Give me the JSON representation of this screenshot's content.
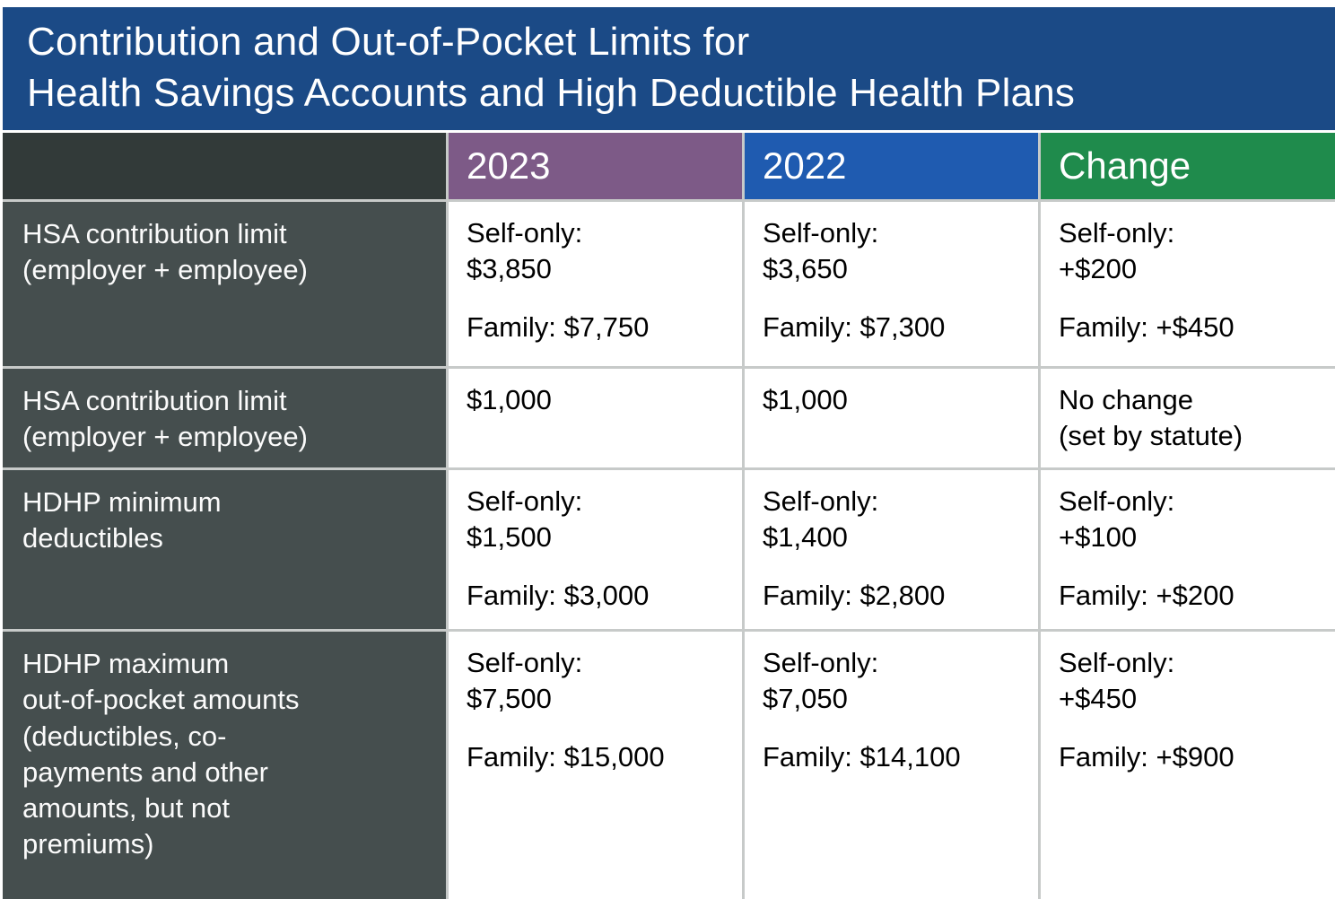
{
  "title": "Contribution and Out-of-Pocket Limits for\nHealth Savings Accounts and High Deductible Health Plans",
  "columns": {
    "y2023": "2023",
    "y2022": "2022",
    "change": "Change"
  },
  "colors": {
    "title_bar": "#1b4a86",
    "header_corner": "#323a39",
    "header_2023": "#7d5a87",
    "header_2022": "#1f5bb0",
    "header_change": "#1f8b4c",
    "row_label_bg": "#454e4e",
    "gridline": "#c7cac9",
    "body_text": "#000000",
    "label_text": "#fbfbfb"
  },
  "rows": [
    {
      "label": "HSA contribution limit\n(employer + employee)",
      "y2023": [
        "Self-only:\n$3,850",
        "Family: $7,750"
      ],
      "y2022": [
        "Self-only:\n$3,650",
        "Family: $7,300"
      ],
      "change": [
        "Self-only:\n+$200",
        "Family: +$450"
      ]
    },
    {
      "label": "HSA contribution limit\n(employer + employee)",
      "y2023": [
        "$1,000"
      ],
      "y2022": [
        "$1,000"
      ],
      "change": [
        "No change\n(set by statute)"
      ]
    },
    {
      "label": "HDHP minimum\ndeductibles",
      "y2023": [
        "Self-only:\n$1,500",
        "Family: $3,000"
      ],
      "y2022": [
        "Self-only:\n$1,400",
        "Family: $2,800"
      ],
      "change": [
        "Self-only:\n+$100",
        "Family: +$200"
      ]
    },
    {
      "label": "HDHP maximum\nout-of-pocket amounts\n(deductibles, co-\npayments and other\namounts, but not\npremiums)",
      "y2023": [
        "Self-only:\n$7,500",
        "Family: $15,000"
      ],
      "y2022": [
        "Self-only:\n$7,050",
        "Family: $14,100"
      ],
      "change": [
        "Self-only:\n+$450",
        "Family: +$900"
      ]
    }
  ],
  "chart_data": {
    "type": "table",
    "title": "Contribution and Out-of-Pocket Limits for Health Savings Accounts and High Deductible Health Plans",
    "columns": [
      "",
      "2023",
      "2022",
      "Change"
    ],
    "rows": [
      [
        "HSA contribution limit (employer + employee)",
        "Self-only: $3,850 | Family: $7,750",
        "Self-only: $3,650 | Family: $7,300",
        "Self-only: +$200 | Family: +$450"
      ],
      [
        "HSA contribution limit (employer + employee)",
        "$1,000",
        "$1,000",
        "No change (set by statute)"
      ],
      [
        "HDHP minimum deductibles",
        "Self-only: $1,500 | Family: $3,000",
        "Self-only: $1,400 | Family: $2,800",
        "Self-only: +$100 | Family: +$200"
      ],
      [
        "HDHP maximum out-of-pocket amounts (deductibles, co-payments and other amounts, but not premiums)",
        "Self-only: $7,500 | Family: $15,000",
        "Self-only: $7,050 | Family: $14,100",
        "Self-only: +$450 | Family: +$900"
      ]
    ]
  }
}
